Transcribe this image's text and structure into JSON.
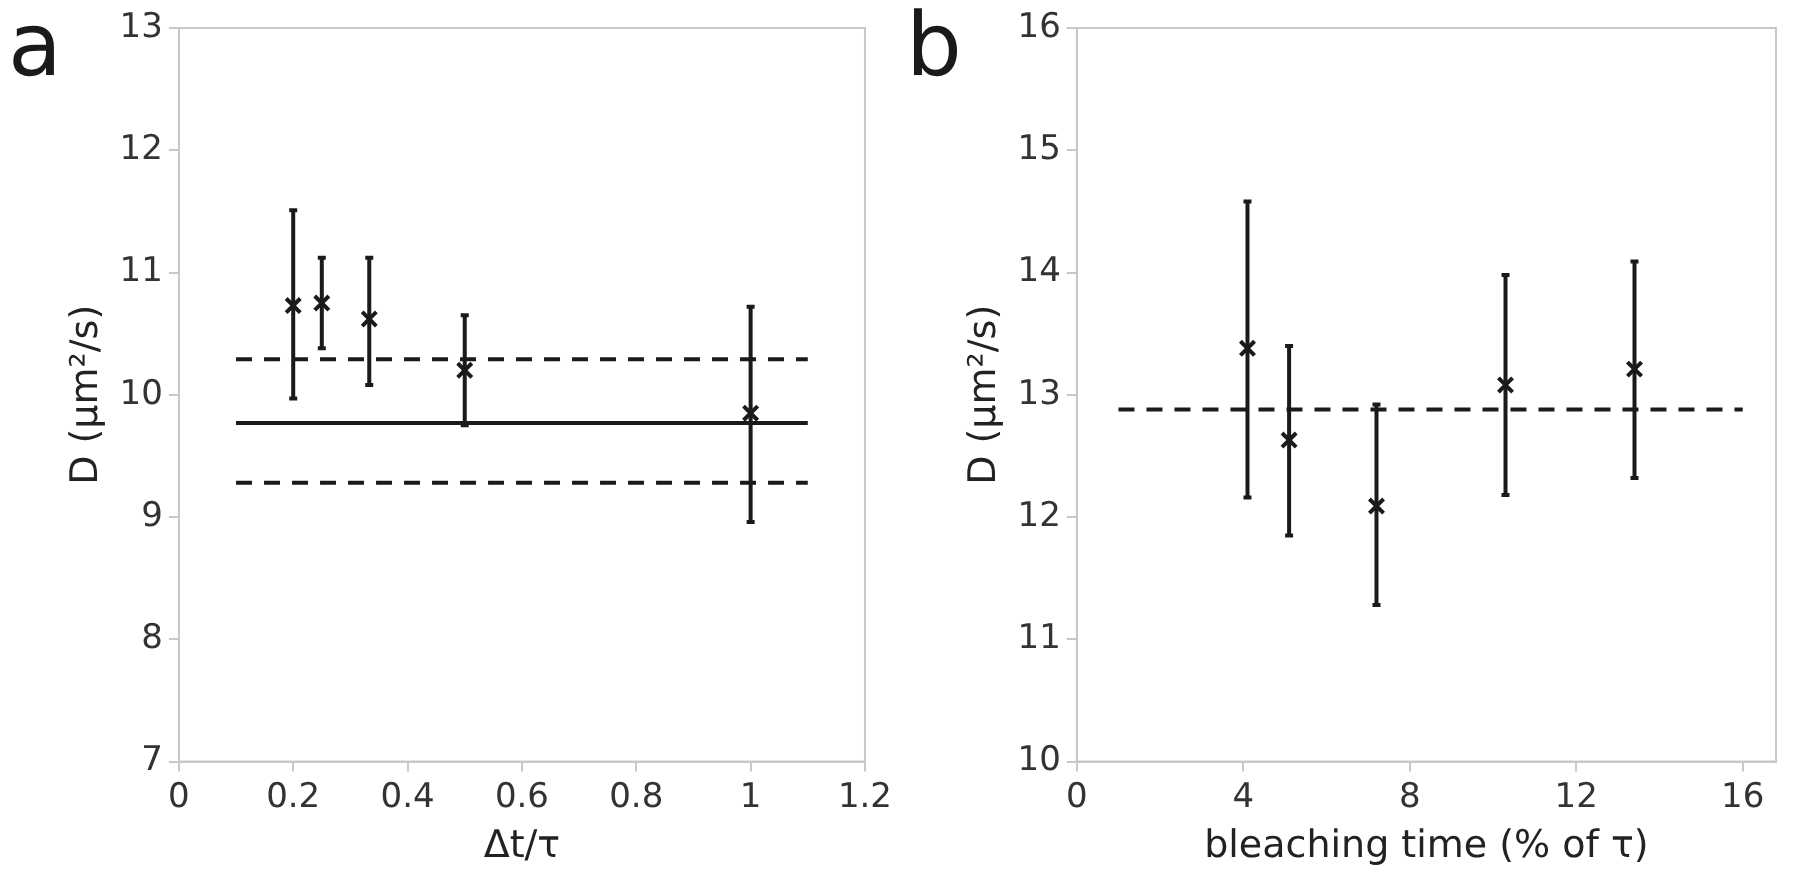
{
  "chart_data": [
    {
      "type": "scatter",
      "annotations": [
        "a"
      ],
      "xlabel": "Δt/τ",
      "ylabel": "D (μm²/s)",
      "xlim": [
        0,
        1.2
      ],
      "xticks": [
        0,
        0.2,
        0.4,
        0.6,
        0.8,
        1,
        1.2
      ],
      "ylim": [
        7,
        13
      ],
      "yticks": [
        7,
        8,
        9,
        10,
        11,
        12,
        13
      ],
      "grid": false,
      "legend": false,
      "series": [
        {
          "marker": "cross",
          "color": "#1a1a1a",
          "x": [
            0.2,
            0.25,
            0.333,
            0.5,
            1
          ],
          "values": [
            10.73,
            10.75,
            10.62,
            10.2,
            9.85
          ],
          "errors": [
            [
              9.97,
              11.51
            ],
            [
              10.38,
              11.12
            ],
            [
              10.08,
              11.12
            ],
            [
              9.75,
              10.65
            ],
            [
              8.96,
              10.72
            ]
          ]
        },
        {
          "type": "line",
          "color": "#1a1a1a",
          "line_style": "solid",
          "x": [
            0.1,
            1.1
          ],
          "values": [
            9.77,
            9.77
          ]
        },
        {
          "type": "line",
          "color": "#1a1a1a",
          "line_style": "dashed",
          "x": [
            0.1,
            1.1
          ],
          "values": [
            10.29,
            10.29
          ]
        },
        {
          "type": "line",
          "color": "#1a1a1a",
          "line_style": "dashed",
          "x": [
            0.1,
            1.1
          ],
          "values": [
            9.28,
            9.28
          ]
        }
      ]
    },
    {
      "type": "scatter",
      "annotations": [
        "b"
      ],
      "xlabel": "bleaching time (% of τ)",
      "ylabel": "D (μm²/s)",
      "xlim": [
        0,
        16.8
      ],
      "xticks": [
        0,
        4,
        8,
        12,
        16
      ],
      "ylim": [
        10,
        16
      ],
      "yticks": [
        10,
        11,
        12,
        13,
        14,
        15,
        16
      ],
      "grid": false,
      "legend": false,
      "series": [
        {
          "marker": "cross",
          "color": "#1a1a1a",
          "x": [
            4.1,
            5.1,
            7.2,
            10.3,
            13.4
          ],
          "values": [
            13.38,
            12.63,
            12.09,
            13.08,
            13.21
          ],
          "errors": [
            [
              12.16,
              14.58
            ],
            [
              11.85,
              13.4
            ],
            [
              11.28,
              12.92
            ],
            [
              12.18,
              13.98
            ],
            [
              12.32,
              14.09
            ]
          ]
        },
        {
          "type": "line",
          "color": "#1a1a1a",
          "line_style": "dashed",
          "x": [
            1,
            16
          ],
          "values": [
            12.88,
            12.88
          ]
        }
      ]
    }
  ]
}
